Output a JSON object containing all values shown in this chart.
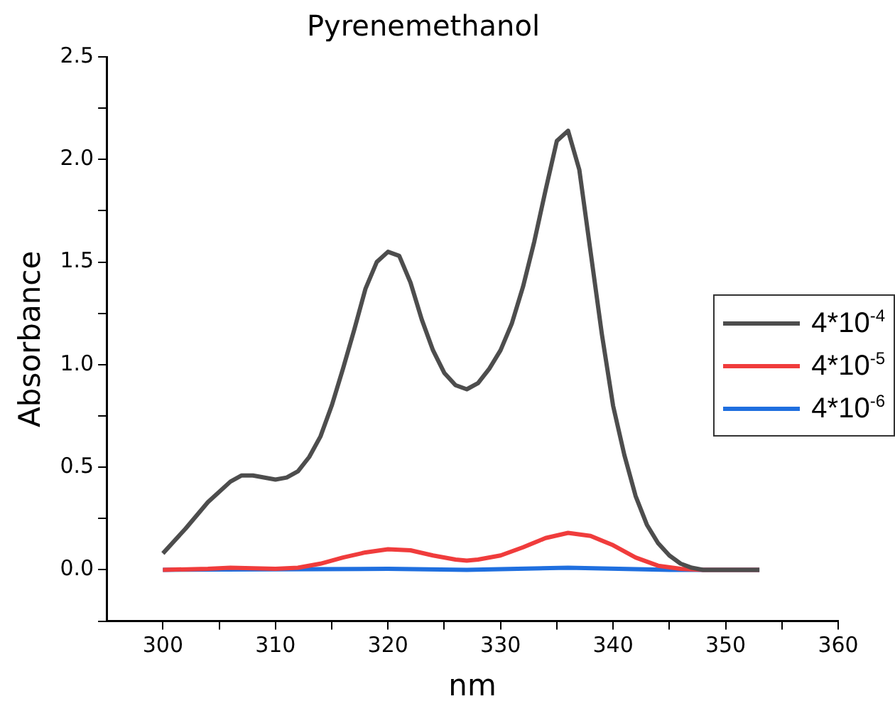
{
  "chart_data": {
    "type": "line",
    "title": "Pyrenemethanol",
    "xlabel": "nm",
    "ylabel": "Absorbance",
    "legend": "right",
    "marker": "none",
    "line_style": "solid",
    "xlim": [
      295,
      360
    ],
    "xticks": [
      300,
      {
        "value": 305,
        "label": null
      },
      310,
      {
        "value": 315,
        "label": null
      },
      320,
      {
        "value": 325,
        "label": null
      },
      330,
      {
        "value": 335,
        "label": null
      },
      340,
      {
        "value": 345,
        "label": null
      },
      350,
      {
        "value": 355,
        "label": null
      },
      360
    ],
    "ylim": [
      -0.25,
      2.5
    ],
    "yticks": [
      {
        "value": -0.25,
        "label": null
      },
      {
        "value": 0,
        "label": "0.0"
      },
      {
        "value": 0.25,
        "label": null
      },
      {
        "value": 0.5,
        "label": "0.5"
      },
      {
        "value": 0.75,
        "label": null
      },
      {
        "value": 1,
        "label": "1.0"
      },
      {
        "value": 1.25,
        "label": null
      },
      {
        "value": 1.5,
        "label": "1.5"
      },
      {
        "value": 1.75,
        "label": null
      },
      {
        "value": 2,
        "label": "2.0"
      },
      {
        "value": 2.25,
        "label": null
      },
      {
        "value": 2.5,
        "label": "2.5"
      }
    ],
    "series": [
      {
        "name": "4*10$^{-4}$",
        "color": "#4d4d4d",
        "x": [
          300,
          302,
          304,
          306,
          307,
          308,
          310,
          311,
          312,
          313,
          314,
          315,
          316,
          317,
          318,
          319,
          320,
          321,
          322,
          323,
          324,
          325,
          326,
          327,
          328,
          329,
          330,
          331,
          332,
          333,
          334,
          335,
          336,
          337,
          338,
          339,
          340,
          341,
          342,
          343,
          344,
          345,
          346,
          347,
          348,
          350,
          353
        ],
        "values": [
          0.08,
          0.2,
          0.33,
          0.43,
          0.46,
          0.46,
          0.44,
          0.45,
          0.48,
          0.55,
          0.65,
          0.8,
          0.98,
          1.17,
          1.37,
          1.5,
          1.55,
          1.53,
          1.4,
          1.22,
          1.07,
          0.96,
          0.9,
          0.88,
          0.91,
          0.98,
          1.07,
          1.2,
          1.38,
          1.6,
          1.85,
          2.09,
          2.14,
          1.95,
          1.55,
          1.15,
          0.8,
          0.56,
          0.36,
          0.22,
          0.13,
          0.07,
          0.03,
          0.01,
          0,
          0,
          0
        ]
      },
      {
        "name": "4*10$^{-5}$",
        "color": "#f03c3c",
        "x": [
          300,
          304,
          306,
          310,
          312,
          314,
          316,
          318,
          320,
          322,
          324,
          326,
          327,
          328,
          330,
          332,
          334,
          336,
          338,
          340,
          342,
          344,
          346,
          348,
          353
        ],
        "values": [
          0,
          0.005,
          0.01,
          0.005,
          0.01,
          0.03,
          0.06,
          0.085,
          0.1,
          0.095,
          0.07,
          0.05,
          0.045,
          0.05,
          0.07,
          0.11,
          0.155,
          0.18,
          0.165,
          0.12,
          0.06,
          0.02,
          0.005,
          0,
          0
        ]
      },
      {
        "name": "4*10$^{-6}$",
        "color": "#1f6fdf",
        "x": [
          300,
          320,
          327,
          336,
          345,
          353
        ],
        "values": [
          0,
          0.005,
          0,
          0.01,
          0,
          0
        ]
      }
    ]
  }
}
